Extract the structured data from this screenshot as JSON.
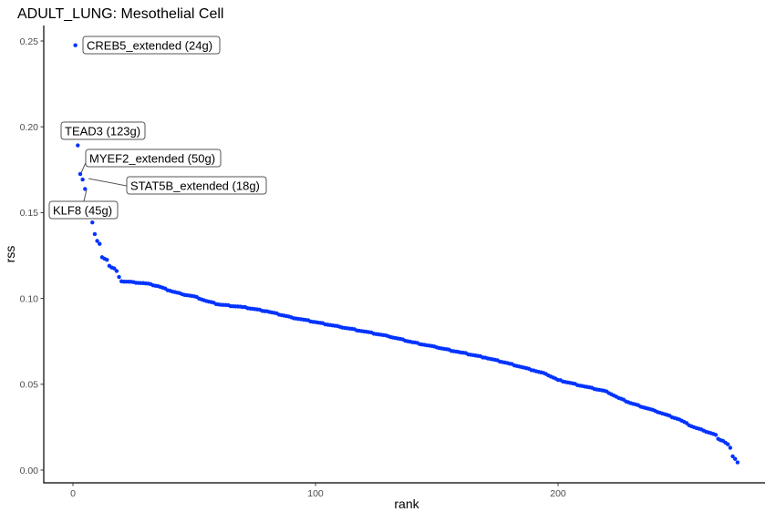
{
  "chart_data": {
    "type": "scatter",
    "title": "ADULT_LUNG: Mesothelial Cell",
    "xlabel": "rank",
    "ylabel": "rss",
    "xlim": [
      -12,
      287
    ],
    "ylim": [
      -0.0075,
      0.2605
    ],
    "x_ticks": [
      0,
      100,
      200
    ],
    "x_tick_labels": [
      "0",
      "100",
      "200"
    ],
    "y_ticks": [
      0.0,
      0.05,
      0.1,
      0.15,
      0.2,
      0.25
    ],
    "y_tick_labels": [
      "0.00",
      "0.05",
      "0.10",
      "0.15",
      "0.20",
      "0.25"
    ],
    "grid": false,
    "legend": "none",
    "point_color": "#0033ff",
    "n_points": 275,
    "curve_anchors": [
      [
        1,
        0.2475
      ],
      [
        2,
        0.1892
      ],
      [
        3,
        0.1725
      ],
      [
        4,
        0.1693
      ],
      [
        5,
        0.1638
      ],
      [
        6,
        0.155
      ],
      [
        7,
        0.151
      ],
      [
        8,
        0.1443
      ],
      [
        9,
        0.1375
      ],
      [
        10,
        0.1335
      ],
      [
        11,
        0.1318
      ],
      [
        12,
        0.124
      ],
      [
        13,
        0.1232
      ],
      [
        14,
        0.1225
      ],
      [
        15,
        0.119
      ],
      [
        16,
        0.118
      ],
      [
        17,
        0.1175
      ],
      [
        18,
        0.116
      ],
      [
        19,
        0.1125
      ],
      [
        20,
        0.11
      ],
      [
        25,
        0.1095
      ],
      [
        30,
        0.1088
      ],
      [
        35,
        0.1072
      ],
      [
        40,
        0.1045
      ],
      [
        45,
        0.1025
      ],
      [
        50,
        0.1012
      ],
      [
        55,
        0.0985
      ],
      [
        60,
        0.0965
      ],
      [
        70,
        0.095
      ],
      [
        80,
        0.0925
      ],
      [
        90,
        0.089
      ],
      [
        100,
        0.0862
      ],
      [
        110,
        0.0835
      ],
      [
        120,
        0.0808
      ],
      [
        130,
        0.078
      ],
      [
        140,
        0.0745
      ],
      [
        150,
        0.0715
      ],
      [
        160,
        0.0685
      ],
      [
        170,
        0.0655
      ],
      [
        180,
        0.062
      ],
      [
        190,
        0.058
      ],
      [
        195,
        0.056
      ],
      [
        200,
        0.0525
      ],
      [
        210,
        0.049
      ],
      [
        220,
        0.0458
      ],
      [
        225,
        0.042
      ],
      [
        230,
        0.039
      ],
      [
        240,
        0.0345
      ],
      [
        250,
        0.0295
      ],
      [
        255,
        0.0255
      ],
      [
        260,
        0.023
      ],
      [
        265,
        0.0205
      ],
      [
        266,
        0.0182
      ],
      [
        268,
        0.017
      ],
      [
        270,
        0.015
      ],
      [
        271,
        0.013
      ],
      [
        272,
        0.008
      ],
      [
        273,
        0.0065
      ],
      [
        274,
        0.0045
      ]
    ],
    "labeled_points": [
      {
        "rank": 1,
        "rss": 0.2475,
        "label": "CREB5_extended (24g)"
      },
      {
        "rank": 2,
        "rss": 0.1892,
        "label": "TEAD3 (123g)"
      },
      {
        "rank": 3,
        "rss": 0.1725,
        "label": "MYEF2_extended (50g)"
      },
      {
        "rank": 4,
        "rss": 0.1693,
        "label": "STAT5B_extended (18g)"
      },
      {
        "rank": 5,
        "rss": 0.1638,
        "label": "KLF8 (45g)"
      }
    ]
  }
}
